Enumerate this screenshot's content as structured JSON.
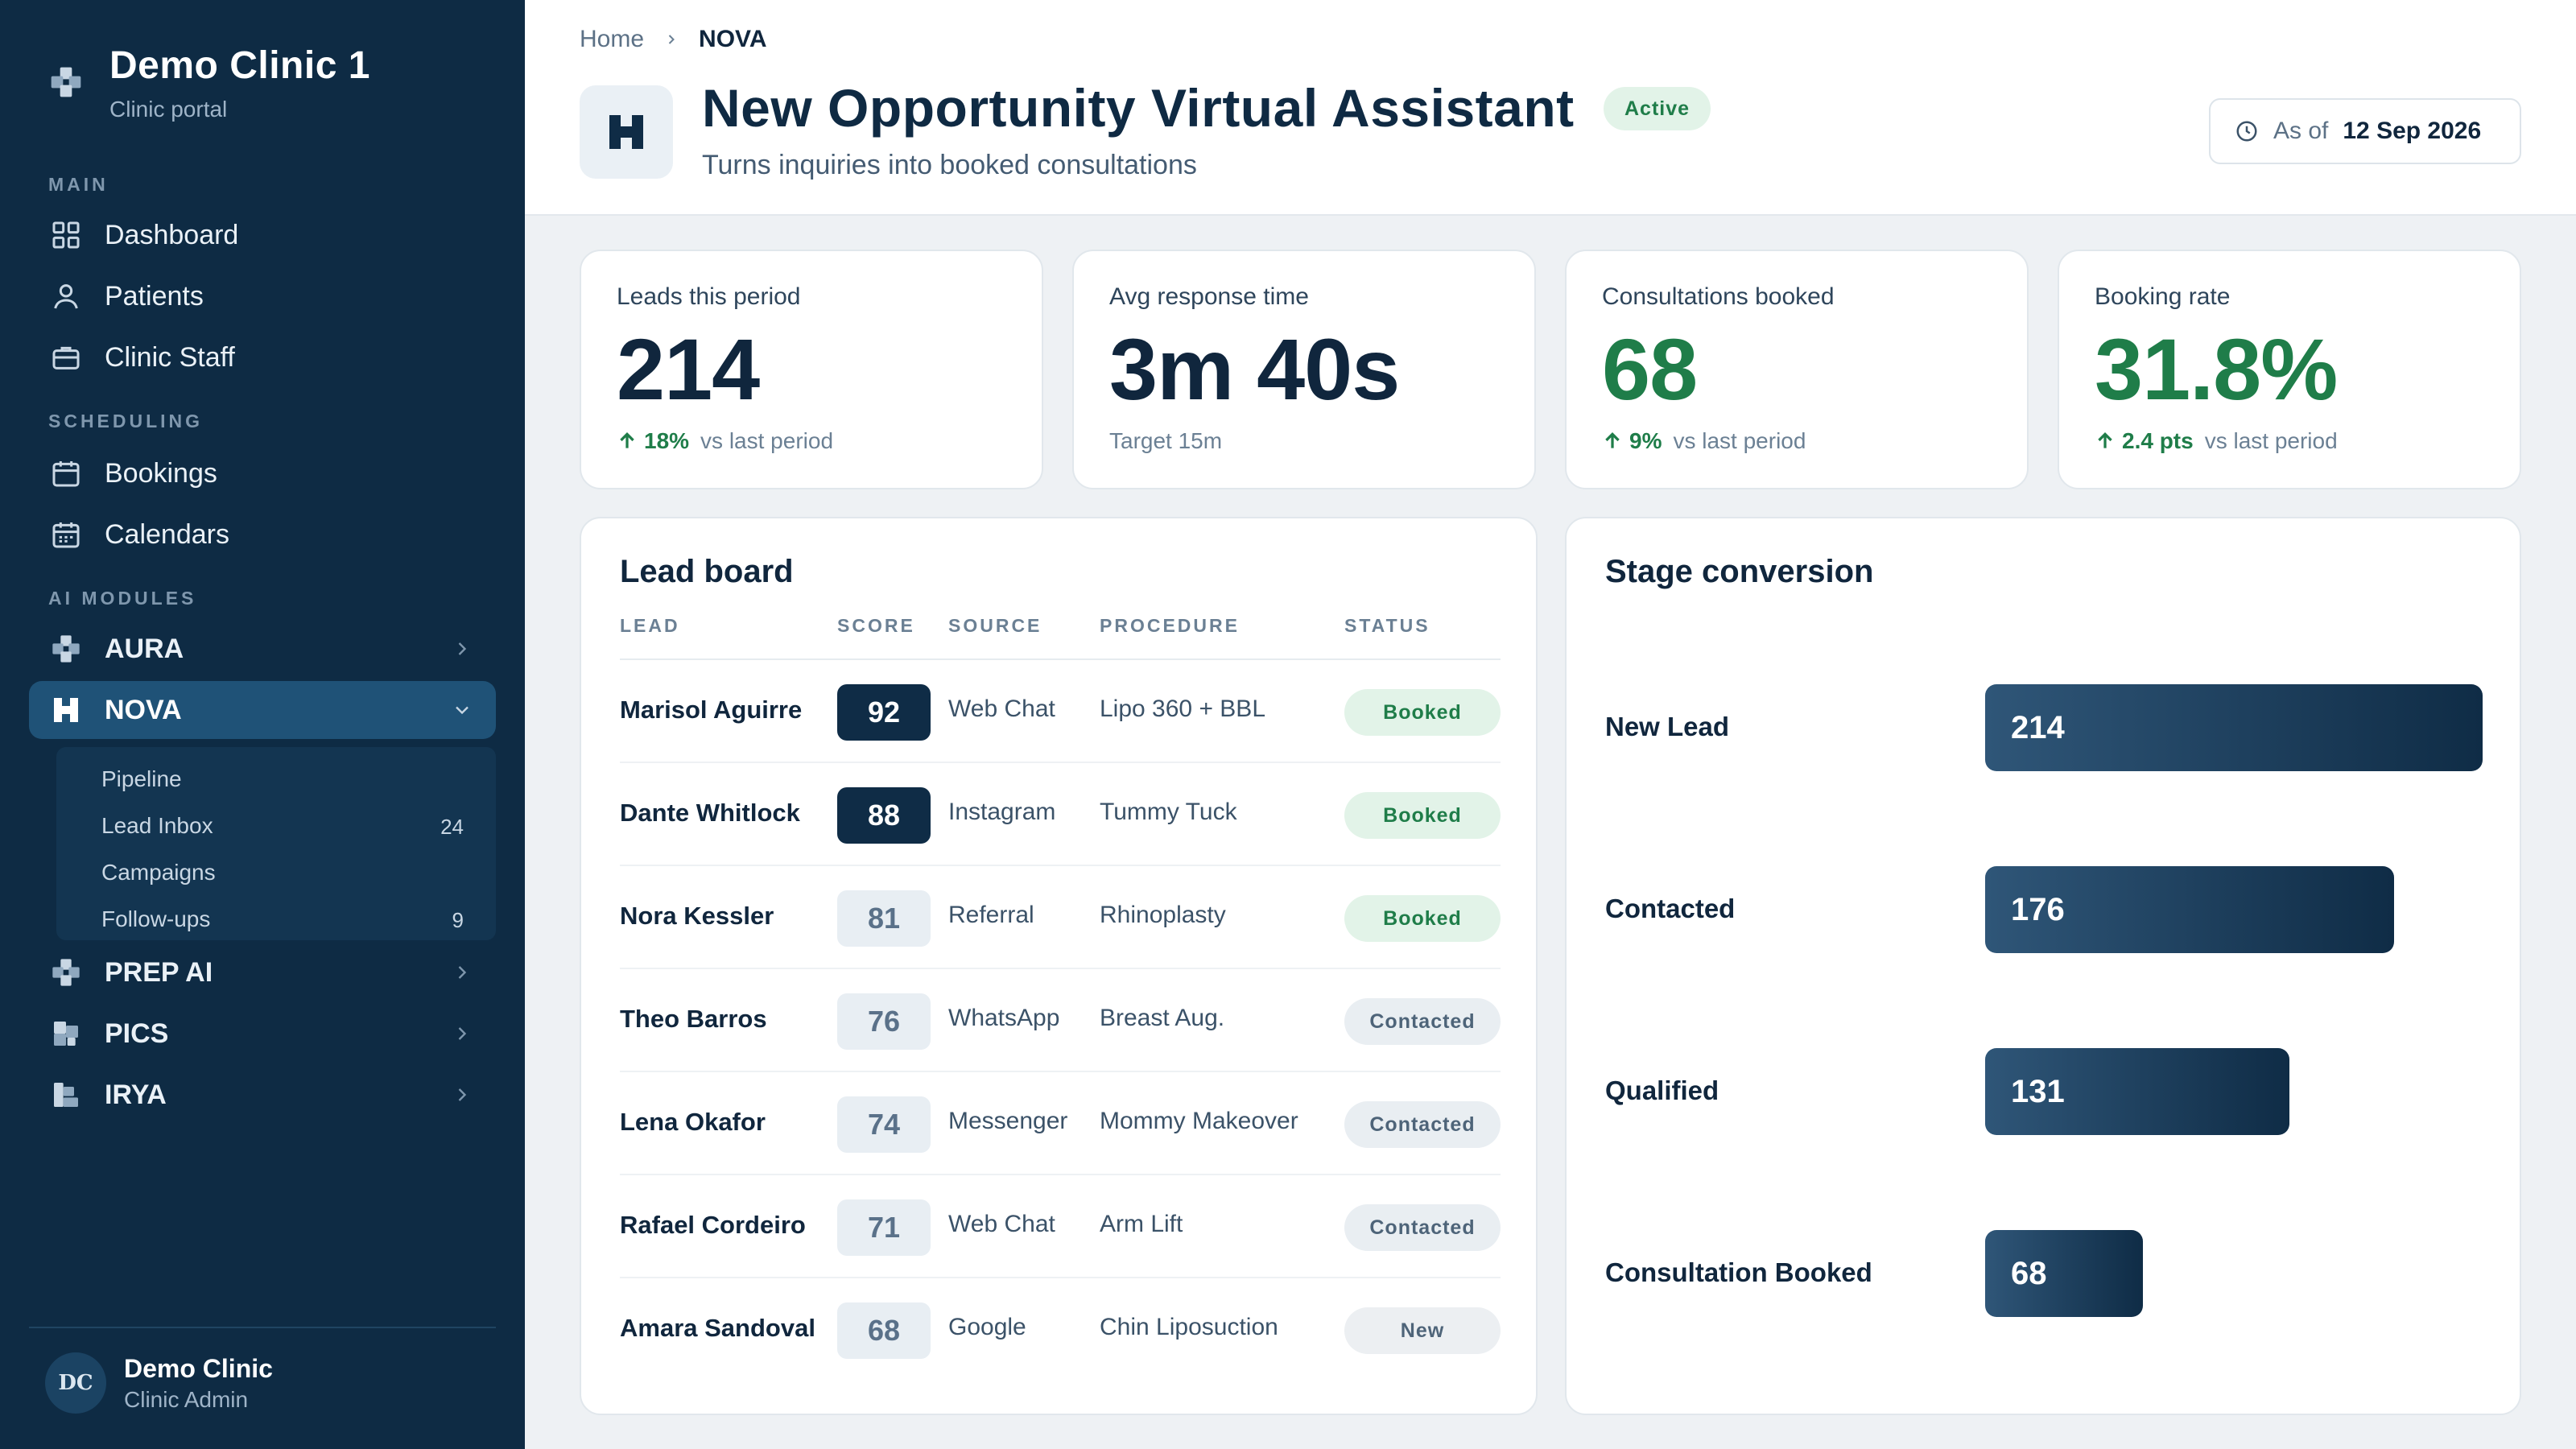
{
  "sidebar": {
    "brand_title": "Demo Clinic 1",
    "brand_sub": "Clinic portal",
    "sections": {
      "main": "MAIN",
      "scheduling": "SCHEDULING",
      "ai_modules": "AI MODULES"
    },
    "items": {
      "dashboard": "Dashboard",
      "patients": "Patients",
      "clinic_staff": "Clinic Staff",
      "bookings": "Bookings",
      "calendars": "Calendars",
      "aura": "AURA",
      "nova": "NOVA",
      "prep_ai": "PREP AI",
      "pics": "PICS",
      "irya": "IRYA"
    },
    "nova_sub": {
      "pipeline": "Pipeline",
      "lead_inbox": "Lead Inbox",
      "lead_inbox_count": "24",
      "campaigns": "Campaigns",
      "follow_ups": "Follow-ups",
      "follow_ups_count": "9"
    },
    "user": {
      "initials": "DC",
      "name": "Demo Clinic",
      "role": "Clinic Admin"
    }
  },
  "header": {
    "breadcrumb_home": "Home",
    "breadcrumb_current": "NOVA",
    "title": "New Opportunity Virtual Assistant",
    "status": "Active",
    "subtitle": "Turns inquiries into booked consultations",
    "as_of_label": "As of",
    "as_of_date": "12 Sep 2026"
  },
  "kpis": [
    {
      "label": "Leads this period",
      "value": "214",
      "delta": "18%",
      "foot": "vs last period"
    },
    {
      "label": "Avg response time",
      "value": "3m 40s",
      "foot": "Target 15m"
    },
    {
      "label": "Consultations booked",
      "value": "68",
      "delta": "9%",
      "foot": "vs last period"
    },
    {
      "label": "Booking rate",
      "value": "31.8%",
      "delta": "2.4 pts",
      "foot": "vs last period"
    }
  ],
  "lead_board": {
    "title": "Lead board",
    "columns": {
      "lead": "LEAD",
      "score": "SCORE",
      "source": "SOURCE",
      "procedure": "PROCEDURE",
      "status": "STATUS"
    },
    "rows": [
      {
        "name": "Marisol Aguirre",
        "score": "92",
        "source": "Web Chat",
        "procedure": "Lipo 360 + BBL",
        "status": "Booked"
      },
      {
        "name": "Dante Whitlock",
        "score": "88",
        "source": "Instagram",
        "procedure": "Tummy Tuck",
        "status": "Booked"
      },
      {
        "name": "Nora Kessler",
        "score": "81",
        "source": "Referral",
        "procedure": "Rhinoplasty",
        "status": "Booked"
      },
      {
        "name": "Theo Barros",
        "score": "76",
        "source": "WhatsApp",
        "procedure": "Breast Aug.",
        "status": "Contacted"
      },
      {
        "name": "Lena Okafor",
        "score": "74",
        "source": "Messenger",
        "procedure": "Mommy Makeover",
        "status": "Contacted"
      },
      {
        "name": "Rafael Cordeiro",
        "score": "71",
        "source": "Web Chat",
        "procedure": "Arm Lift",
        "status": "Contacted"
      },
      {
        "name": "Amara Sandoval",
        "score": "68",
        "source": "Google",
        "procedure": "Chin Liposuction",
        "status": "New"
      }
    ]
  },
  "stage_conversion": {
    "title": "Stage conversion",
    "stages": [
      {
        "label": "New Lead",
        "value": "214"
      },
      {
        "label": "Contacted",
        "value": "176"
      },
      {
        "label": "Qualified",
        "value": "131"
      },
      {
        "label": "Consultation Booked",
        "value": "68"
      }
    ]
  },
  "colors": {
    "sidebar_bg": "#0e2b44",
    "active_nav": "#1f5277",
    "accent_green": "#1f7d49",
    "score_hot": "#0f2c46"
  }
}
